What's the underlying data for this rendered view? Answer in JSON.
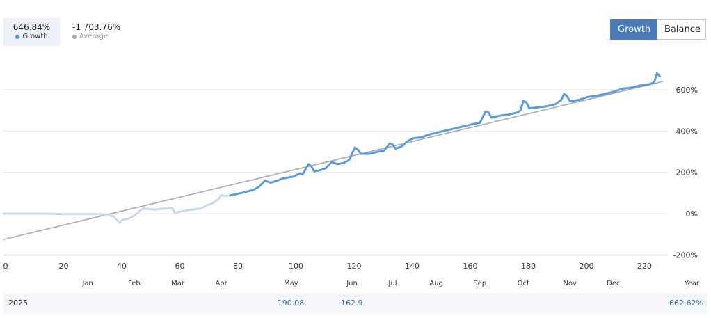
{
  "stats": {
    "growth": {
      "value": "646.84%",
      "label": "Growth",
      "color": "#5b9be0"
    },
    "average": {
      "value": "-1 703.76%",
      "label": "Average",
      "color": "#aaaaaa"
    }
  },
  "toggle": {
    "growth_label": "Growth",
    "balance_label": "Balance",
    "active": "Growth"
  },
  "chart_data": {
    "type": "line",
    "xlim": [
      0,
      228
    ],
    "ylim": [
      -200,
      800
    ],
    "y_ticks": [
      {
        "value": 600,
        "label": "600%"
      },
      {
        "value": 400,
        "label": "400%"
      },
      {
        "value": 200,
        "label": "200%"
      },
      {
        "value": 0,
        "label": "0%"
      },
      {
        "value": -200,
        "label": "-200%"
      }
    ],
    "x_ticks": [
      {
        "value": 0,
        "label": "0"
      },
      {
        "value": 20,
        "label": "20"
      },
      {
        "value": 40,
        "label": "40"
      },
      {
        "value": 60,
        "label": "60"
      },
      {
        "value": 80,
        "label": "80"
      },
      {
        "value": 100,
        "label": "100"
      },
      {
        "value": 120,
        "label": "120"
      },
      {
        "value": 140,
        "label": "140"
      },
      {
        "value": 160,
        "label": "160"
      },
      {
        "value": 180,
        "label": "180"
      },
      {
        "value": 200,
        "label": "200"
      },
      {
        "value": 220,
        "label": "220"
      }
    ],
    "months": [
      {
        "label": "Jan",
        "x": 29
      },
      {
        "label": "Feb",
        "x": 45
      },
      {
        "label": "Mar",
        "x": 60
      },
      {
        "label": "Apr",
        "x": 75
      },
      {
        "label": "May",
        "x": 99
      },
      {
        "label": "Jun",
        "x": 120
      },
      {
        "label": "Jul",
        "x": 134
      },
      {
        "label": "Aug",
        "x": 149
      },
      {
        "label": "Sep",
        "x": 164
      },
      {
        "label": "Oct",
        "x": 179
      },
      {
        "label": "Nov",
        "x": 195
      },
      {
        "label": "Dec",
        "x": 210
      },
      {
        "label": "Year",
        "x": 237
      }
    ],
    "series": [
      {
        "role": "growth-pre",
        "color": "#c9d8f0",
        "points": [
          [
            0,
            0
          ],
          [
            8,
            0
          ],
          [
            14,
            0
          ],
          [
            20,
            -2
          ],
          [
            26,
            -2
          ],
          [
            32,
            -2
          ],
          [
            36,
            -5
          ],
          [
            38,
            -15
          ],
          [
            40,
            -45
          ],
          [
            41,
            -30
          ],
          [
            43,
            -25
          ],
          [
            45,
            -10
          ],
          [
            48,
            25
          ],
          [
            52,
            20
          ],
          [
            56,
            25
          ],
          [
            58,
            28
          ],
          [
            59,
            5
          ],
          [
            61,
            10
          ],
          [
            64,
            18
          ],
          [
            68,
            25
          ],
          [
            70,
            40
          ],
          [
            72,
            50
          ],
          [
            74,
            70
          ],
          [
            75,
            90
          ],
          [
            76,
            85
          ],
          [
            78,
            88
          ]
        ]
      },
      {
        "role": "growth",
        "color": "#5b9be0",
        "points": [
          [
            78,
            88
          ],
          [
            82,
            100
          ],
          [
            86,
            115
          ],
          [
            88,
            130
          ],
          [
            90,
            160
          ],
          [
            92,
            150
          ],
          [
            94,
            158
          ],
          [
            96,
            170
          ],
          [
            98,
            175
          ],
          [
            100,
            180
          ],
          [
            102,
            195
          ],
          [
            103,
            190
          ],
          [
            105,
            240
          ],
          [
            106,
            230
          ],
          [
            107,
            205
          ],
          [
            109,
            210
          ],
          [
            111,
            220
          ],
          [
            113,
            250
          ],
          [
            115,
            240
          ],
          [
            117,
            245
          ],
          [
            119,
            260
          ],
          [
            121,
            320
          ],
          [
            122,
            310
          ],
          [
            123,
            290
          ],
          [
            126,
            290
          ],
          [
            129,
            300
          ],
          [
            131,
            305
          ],
          [
            133,
            340
          ],
          [
            134,
            335
          ],
          [
            135,
            315
          ],
          [
            137,
            325
          ],
          [
            139,
            350
          ],
          [
            141,
            365
          ],
          [
            144,
            370
          ],
          [
            147,
            385
          ],
          [
            150,
            395
          ],
          [
            153,
            405
          ],
          [
            156,
            415
          ],
          [
            159,
            425
          ],
          [
            162,
            435
          ],
          [
            164,
            440
          ],
          [
            166,
            495
          ],
          [
            167,
            490
          ],
          [
            168,
            465
          ],
          [
            171,
            475
          ],
          [
            174,
            480
          ],
          [
            177,
            490
          ],
          [
            178,
            500
          ],
          [
            179,
            545
          ],
          [
            180,
            540
          ],
          [
            181,
            510
          ],
          [
            184,
            515
          ],
          [
            187,
            520
          ],
          [
            190,
            530
          ],
          [
            192,
            550
          ],
          [
            193,
            580
          ],
          [
            194,
            570
          ],
          [
            195,
            545
          ],
          [
            198,
            550
          ],
          [
            201,
            565
          ],
          [
            204,
            570
          ],
          [
            207,
            580
          ],
          [
            210,
            590
          ],
          [
            213,
            605
          ],
          [
            216,
            610
          ],
          [
            219,
            620
          ],
          [
            222,
            625
          ],
          [
            224,
            635
          ],
          [
            225,
            680
          ],
          [
            226,
            665
          ]
        ]
      },
      {
        "role": "average",
        "color": "#aaaaaa",
        "points": [
          [
            0,
            -125
          ],
          [
            227,
            640
          ]
        ]
      }
    ]
  },
  "summary": {
    "year": "2025",
    "values": [
      {
        "text": "190.08",
        "month": "May"
      },
      {
        "text": "162.9",
        "month": "Jun"
      }
    ],
    "total": "662.62%"
  }
}
